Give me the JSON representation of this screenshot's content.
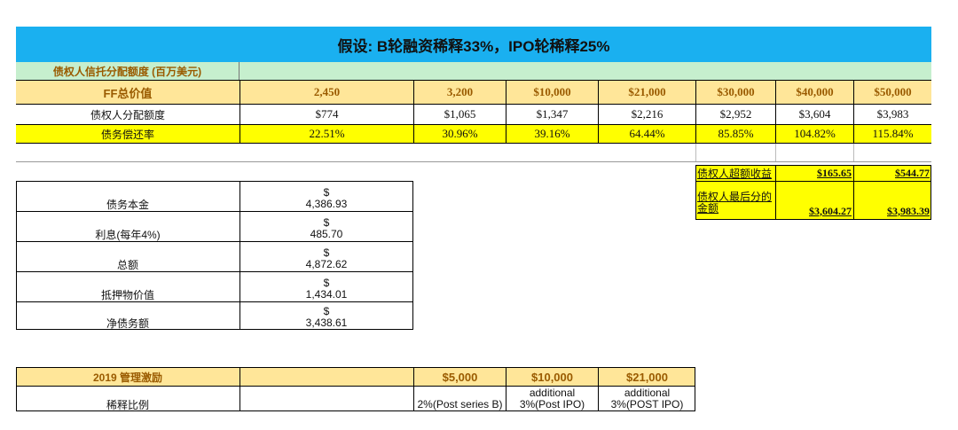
{
  "title": "假设: B轮融资稀释33%，IPO轮稀释25%",
  "section_label": "债权人信托分配额度 (百万美元)",
  "ff_row": {
    "label": "FF总价值",
    "values": [
      "2,450",
      "3,200",
      "$10,000",
      "$21,000",
      "$30,000",
      "$40,000",
      "$50,000"
    ]
  },
  "allocation_row": {
    "label": "债权人分配额度",
    "values": [
      "$774",
      "$1,065",
      "$1,347",
      "$2,216",
      "$2,952",
      "$3,604",
      "$3,983"
    ]
  },
  "repay_row": {
    "label": "债务偿还率",
    "values": [
      "22.51%",
      "30.96%",
      "39.16%",
      "64.44%",
      "85.85%",
      "104.82%",
      "115.84%"
    ]
  },
  "excess": {
    "label1": "债权人超额收益",
    "v1a": "$165.65",
    "v1b": "$544.77",
    "label2": "债权人最后分的金额",
    "v2a": "$3,604.27",
    "v2b": "$3,983.39"
  },
  "debt_table": [
    {
      "label": "债务本金",
      "currency": "$",
      "value": "4,386.93"
    },
    {
      "label": "利息(每年4%)",
      "currency": "$",
      "value": "485.70"
    },
    {
      "label": "总额",
      "currency": "$",
      "value": "4,872.62"
    },
    {
      "label": "抵押物价值",
      "currency": "$",
      "value": "1,434.01"
    },
    {
      "label": "净债务额",
      "currency": "$",
      "value": "3,438.61"
    }
  ],
  "incentive": {
    "label": "2019 管理激励",
    "h1": "$5,000",
    "h2": "$10,000",
    "h3": "$21,000",
    "row_label": "稀释比例",
    "d1": "2%(Post series B)",
    "d2a": "additional",
    "d2b": "3%(Post IPO)",
    "d3a": "additional",
    "d3b": "3%(POST IPO)"
  },
  "colors": {
    "title_bg": "#1ab0f0",
    "section_bg": "#c6efce",
    "ff_bg": "#ffe699",
    "yellow": "#ffff00",
    "gold_text": "#9a5b00"
  }
}
